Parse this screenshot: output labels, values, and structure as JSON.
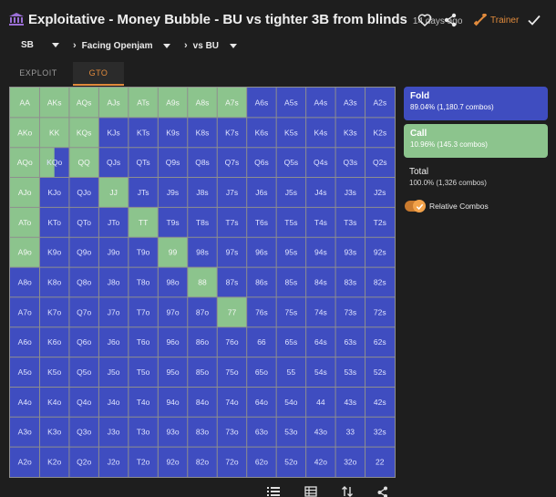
{
  "header": {
    "title": "Exploitative - Money Bubble - BU vs tighter 3B from blinds",
    "time_ago": "14 days ago",
    "trainer_label": "Trainer",
    "accent": "#e08a3c"
  },
  "filters": {
    "position": "SB",
    "situation": "Facing Openjam",
    "versus": "vs BU"
  },
  "tabs": {
    "exploit": "EXPLOIT",
    "gto": "GTO",
    "active": "GTO"
  },
  "legend": {
    "fold": {
      "name": "Fold",
      "detail": "89.04% (1,180.7 combos)",
      "color": "#3f4dc0"
    },
    "call": {
      "name": "Call",
      "detail": "10.96% (145.3 combos)",
      "color": "#8cc48d"
    },
    "total": {
      "name": "Total",
      "detail": "100.0% (1,326 combos)"
    },
    "relative_combos_label": "Relative Combos",
    "relative_combos_on": true
  },
  "colors": {
    "fold": "#3f4dc0",
    "call": "#8cc48d",
    "border": "#8e8e8e"
  },
  "chart_data": {
    "type": "heatmap",
    "ranks": [
      "A",
      "K",
      "Q",
      "J",
      "T",
      "9",
      "8",
      "7",
      "6",
      "5",
      "4",
      "3",
      "2"
    ],
    "hands": [
      [
        "AA",
        "AKs",
        "AQs",
        "AJs",
        "ATs",
        "A9s",
        "A8s",
        "A7s",
        "A6s",
        "A5s",
        "A4s",
        "A3s",
        "A2s"
      ],
      [
        "AKo",
        "KK",
        "KQs",
        "KJs",
        "KTs",
        "K9s",
        "K8s",
        "K7s",
        "K6s",
        "K5s",
        "K4s",
        "K3s",
        "K2s"
      ],
      [
        "AQo",
        "KQo",
        "QQ",
        "QJs",
        "QTs",
        "Q9s",
        "Q8s",
        "Q7s",
        "Q6s",
        "Q5s",
        "Q4s",
        "Q3s",
        "Q2s"
      ],
      [
        "AJo",
        "KJo",
        "QJo",
        "JJ",
        "JTs",
        "J9s",
        "J8s",
        "J7s",
        "J6s",
        "J5s",
        "J4s",
        "J3s",
        "J2s"
      ],
      [
        "ATo",
        "KTo",
        "QTo",
        "JTo",
        "TT",
        "T9s",
        "T8s",
        "T7s",
        "T6s",
        "T5s",
        "T4s",
        "T3s",
        "T2s"
      ],
      [
        "A9o",
        "K9o",
        "Q9o",
        "J9o",
        "T9o",
        "99",
        "98s",
        "97s",
        "96s",
        "95s",
        "94s",
        "93s",
        "92s"
      ],
      [
        "A8o",
        "K8o",
        "Q8o",
        "J8o",
        "T8o",
        "98o",
        "88",
        "87s",
        "86s",
        "85s",
        "84s",
        "83s",
        "82s"
      ],
      [
        "A7o",
        "K7o",
        "Q7o",
        "J7o",
        "T7o",
        "97o",
        "87o",
        "77",
        "76s",
        "75s",
        "74s",
        "73s",
        "72s"
      ],
      [
        "A6o",
        "K6o",
        "Q6o",
        "J6o",
        "T6o",
        "96o",
        "86o",
        "76o",
        "66",
        "65s",
        "64s",
        "63s",
        "62s"
      ],
      [
        "A5o",
        "K5o",
        "Q5o",
        "J5o",
        "T5o",
        "95o",
        "85o",
        "75o",
        "65o",
        "55",
        "54s",
        "53s",
        "52s"
      ],
      [
        "A4o",
        "K4o",
        "Q4o",
        "J4o",
        "T4o",
        "94o",
        "84o",
        "74o",
        "64o",
        "54o",
        "44",
        "43s",
        "42s"
      ],
      [
        "A3o",
        "K3o",
        "Q3o",
        "J3o",
        "T3o",
        "93o",
        "83o",
        "73o",
        "63o",
        "53o",
        "43o",
        "33",
        "32s"
      ],
      [
        "A2o",
        "K2o",
        "Q2o",
        "J2o",
        "T2o",
        "92o",
        "82o",
        "72o",
        "62o",
        "52o",
        "42o",
        "32o",
        "22"
      ]
    ],
    "call_fraction": [
      [
        1,
        1,
        1,
        1,
        1,
        1,
        1,
        1,
        0,
        0,
        0,
        0,
        0
      ],
      [
        1,
        1,
        1,
        0,
        0,
        0,
        0,
        0,
        0,
        0,
        0,
        0,
        0
      ],
      [
        1,
        0.5,
        1,
        0,
        0,
        0,
        0,
        0,
        0,
        0,
        0,
        0,
        0
      ],
      [
        1,
        0,
        0,
        1,
        0,
        0,
        0,
        0,
        0,
        0,
        0,
        0,
        0
      ],
      [
        1,
        0,
        0,
        0,
        1,
        0,
        0,
        0,
        0,
        0,
        0,
        0,
        0
      ],
      [
        1,
        0,
        0,
        0,
        0,
        1,
        0,
        0,
        0,
        0,
        0,
        0,
        0
      ],
      [
        0,
        0,
        0,
        0,
        0,
        0,
        1,
        0,
        0,
        0,
        0,
        0,
        0
      ],
      [
        0,
        0,
        0,
        0,
        0,
        0,
        0,
        1,
        0,
        0,
        0,
        0,
        0
      ],
      [
        0,
        0,
        0,
        0,
        0,
        0,
        0,
        0,
        0,
        0,
        0,
        0,
        0
      ],
      [
        0,
        0,
        0,
        0,
        0,
        0,
        0,
        0,
        0,
        0,
        0,
        0,
        0
      ],
      [
        0,
        0,
        0,
        0,
        0,
        0,
        0,
        0,
        0,
        0,
        0,
        0,
        0
      ],
      [
        0,
        0,
        0,
        0,
        0,
        0,
        0,
        0,
        0,
        0,
        0,
        0,
        0
      ],
      [
        0,
        0,
        0,
        0,
        0,
        0,
        0,
        0,
        0,
        0,
        0,
        0,
        0
      ]
    ]
  },
  "bottom_icons": [
    "list-icon",
    "table-icon",
    "sort-icon",
    "share-nodes-icon"
  ]
}
